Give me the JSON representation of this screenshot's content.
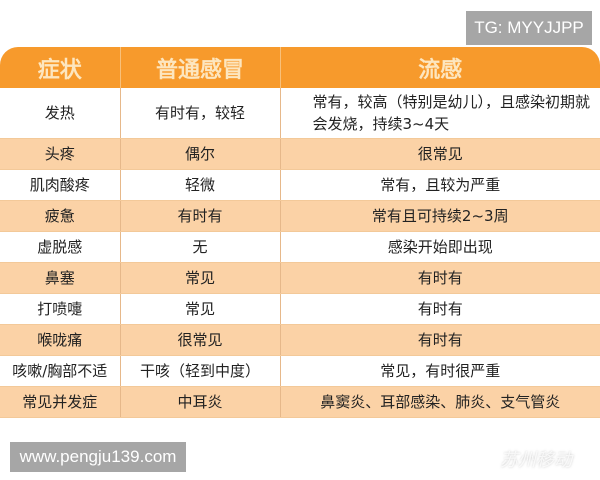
{
  "watermarks": {
    "tg": "TG: MYYJJPP",
    "site": "www.pengju139.com",
    "wechat": "苏州移动"
  },
  "colors": {
    "header": "#f79a2c",
    "header_text": "#fde6bf",
    "alt_row": "#fbd2a6"
  },
  "table": {
    "headers": [
      "症状",
      "普通感冒",
      "流感"
    ],
    "rows": [
      [
        "发热",
        "有时有，较轻",
        "常有，较高（特别是幼儿），且感染初期就会发烧，持续3~4天"
      ],
      [
        "头疼",
        "偶尔",
        "很常见"
      ],
      [
        "肌肉酸疼",
        "轻微",
        "常有，且较为严重"
      ],
      [
        "疲惫",
        "有时有",
        "常有且可持续2~3周"
      ],
      [
        "虚脱感",
        "无",
        "感染开始即出现"
      ],
      [
        "鼻塞",
        "常见",
        "有时有"
      ],
      [
        "打喷嚏",
        "常见",
        "有时有"
      ],
      [
        "喉咙痛",
        "很常见",
        "有时有"
      ],
      [
        "咳嗽/胸部不适",
        "干咳（轻到中度）",
        "常见，有时很严重"
      ],
      [
        "常见并发症",
        "中耳炎",
        "鼻窦炎、耳部感染、肺炎、支气管炎"
      ]
    ]
  }
}
